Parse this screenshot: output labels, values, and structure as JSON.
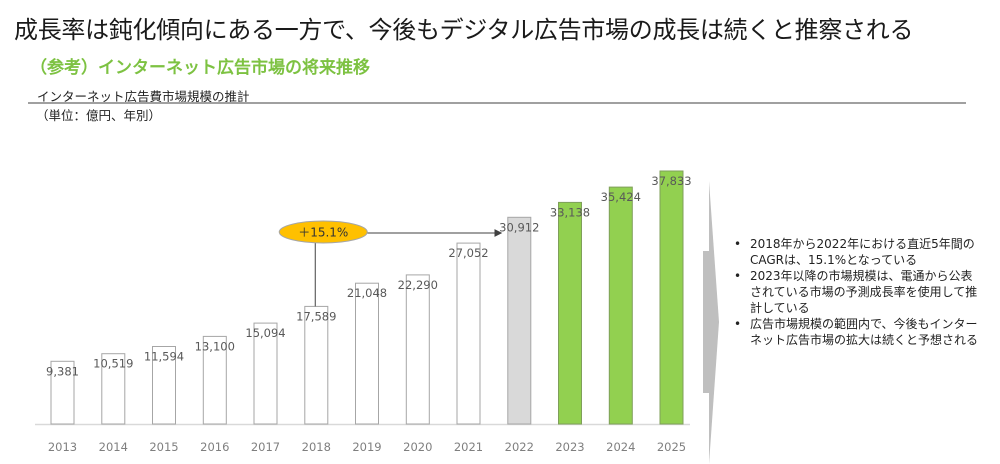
{
  "header": {
    "headline": "成長率は鈍化傾向にある一方で、今後もデジタル広告市場の成長は続くと推察される",
    "subtitle": "（参考）インターネット広告市場の将来推移"
  },
  "colors": {
    "subtitle_green": "#7dc242",
    "actual_bar_fill": "#ffffff",
    "actual_bar_stroke": "#a6a6a6",
    "base_bar_fill": "#d9d9d9",
    "forecast_bar_fill": "#92d050",
    "forecast_bar_stroke": "#7f9f5a",
    "cagr_badge_fill": "#ffc000",
    "arrow_gray": "#bfbfbf"
  },
  "chart_data": {
    "type": "bar",
    "title": "インターネット広告費市場規模の推計",
    "unit_label": "（単位：億円、年別）",
    "xlabel": "",
    "ylabel": "",
    "ylim": [
      0,
      37833
    ],
    "grid": false,
    "categories": [
      "2013",
      "2014",
      "2015",
      "2016",
      "2017",
      "2018",
      "2019",
      "2020",
      "2021",
      "2022",
      "2023",
      "2024",
      "2025"
    ],
    "values": [
      9381,
      10519,
      11594,
      13100,
      15094,
      17589,
      21048,
      22290,
      27052,
      30912,
      33138,
      35424,
      37833
    ],
    "value_labels": [
      "9,381",
      "10,519",
      "11,594",
      "13,100",
      "15,094",
      "17,589",
      "21,048",
      "22,290",
      "27,052",
      "30,912",
      "33,138",
      "35,424",
      "37,833"
    ],
    "bar_kinds": [
      "actual",
      "actual",
      "actual",
      "actual",
      "actual",
      "actual",
      "actual",
      "actual",
      "actual",
      "base",
      "forecast",
      "forecast",
      "forecast"
    ],
    "annotations": [
      {
        "text": "＋15.1%",
        "type": "cagr",
        "from": "2018",
        "to": "2022"
      }
    ]
  },
  "notes": {
    "bullet_char": "•",
    "items": [
      "2018年から2022年における直近5年間のCAGRは、15.1%となっている",
      "2023年以降の市場規模は、電通から公表されている市場の予測成長率を使用して推計している",
      "広告市場規模の範囲内で、今後もインターネット広告市場の拡大は続くと予想される"
    ]
  }
}
